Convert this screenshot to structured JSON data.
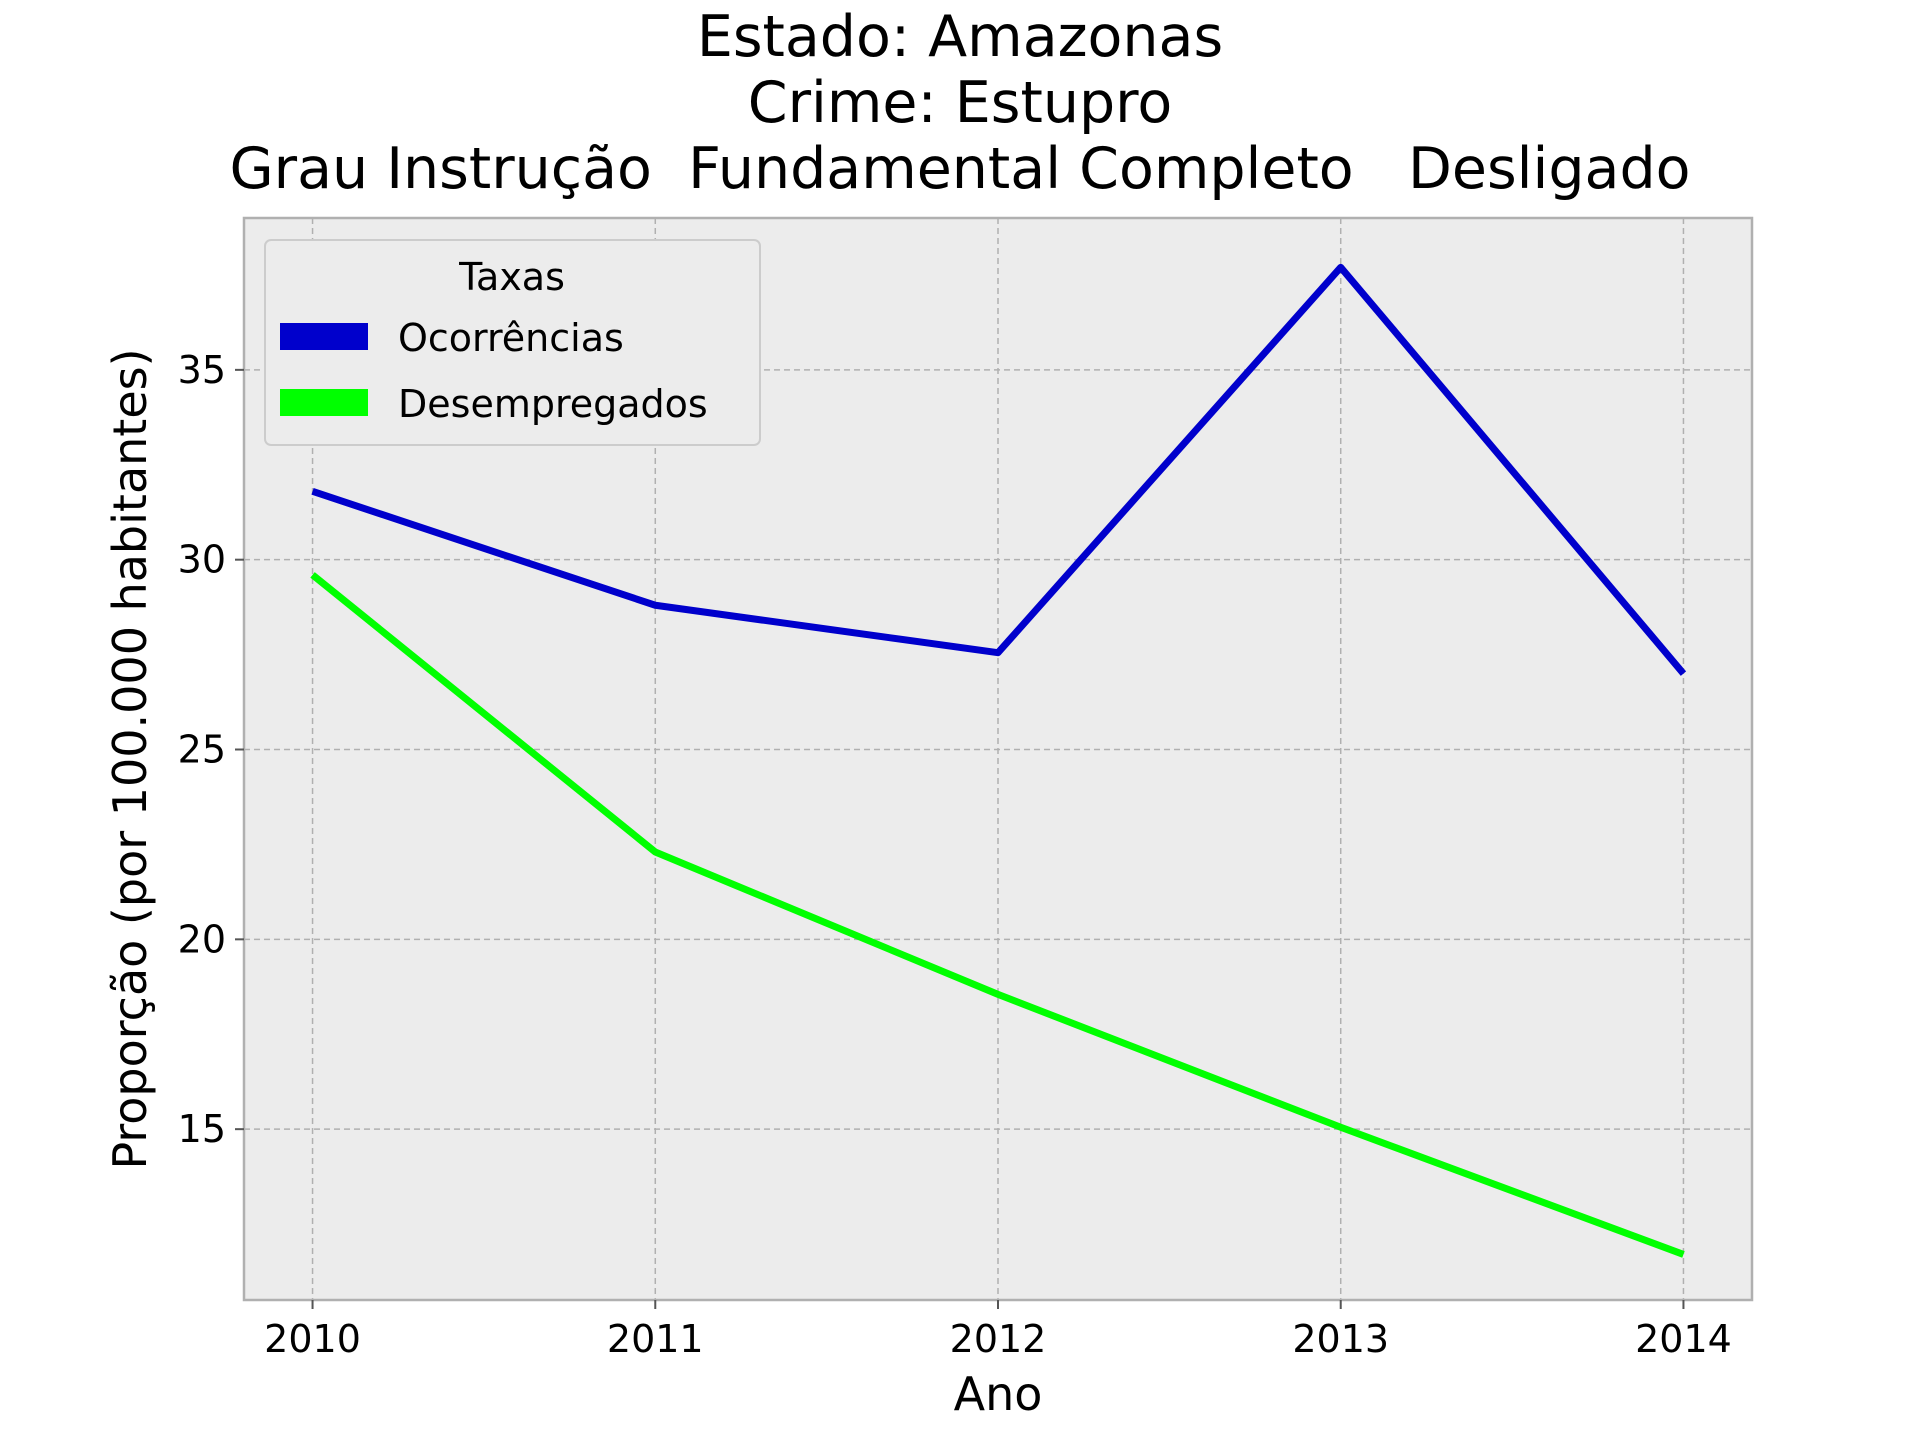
{
  "chart_data": {
    "type": "line",
    "title_lines": [
      "Estado: Amazonas",
      "Crime: Estupro",
      "Grau Instrução  Fundamental Completo   Desligado"
    ],
    "xlabel": "Ano",
    "ylabel": "Proporção (por 100.000 habitantes)",
    "x": [
      2010,
      2011,
      2012,
      2013,
      2014
    ],
    "x_tick_labels": [
      "2010",
      "2011",
      "2012",
      "2013",
      "2014"
    ],
    "xlim": [
      2009.8,
      2014.2
    ],
    "y_ticks": [
      15,
      20,
      25,
      30,
      35
    ],
    "y_tick_labels": [
      "15",
      "20",
      "25",
      "30",
      "35"
    ],
    "ylim": [
      10.5,
      39.0
    ],
    "grid": true,
    "legend": {
      "title": "Taxas",
      "placement": "upper-left"
    },
    "series": [
      {
        "name": "Ocorrências",
        "color": "#0000cc",
        "values": [
          31.8,
          28.8,
          27.55,
          37.7,
          27.0
        ]
      },
      {
        "name": "Desempregados",
        "color": "#00ff00",
        "values": [
          29.6,
          22.3,
          18.55,
          15.05,
          11.7
        ]
      }
    ]
  }
}
